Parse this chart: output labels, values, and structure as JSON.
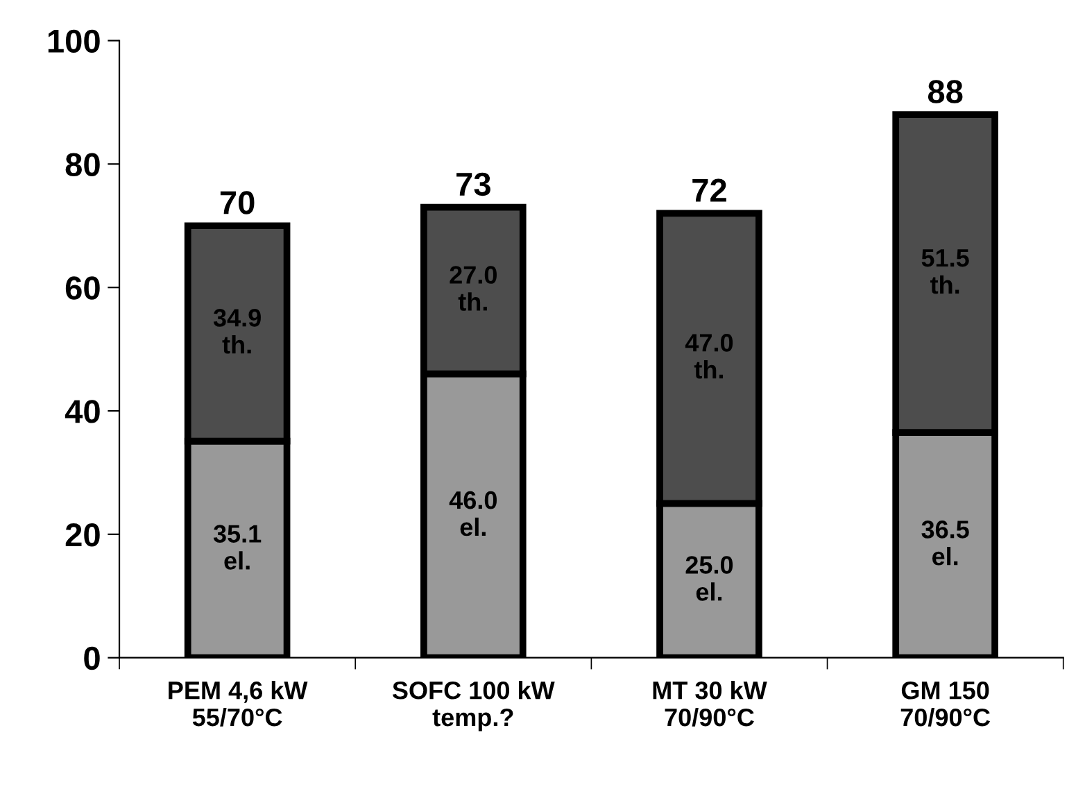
{
  "chart_data": {
    "type": "bar",
    "stacked": true,
    "categories": [
      "PEM 4,6 kW\n55/70°C",
      "SOFC 100 kW\ntemp.?",
      "MT 30 kW\n70/90°C",
      "GM 150\n70/90°C"
    ],
    "series": [
      {
        "color": "#999999",
        "values": [
          35.1,
          46.0,
          25.0,
          36.5
        ],
        "value_labels": [
          "35.1\nel.",
          "46.0\nel.",
          "25.0\nel.",
          "36.5\nel."
        ]
      },
      {
        "color": "#4d4d4d",
        "values": [
          34.9,
          27.0,
          47.0,
          51.5
        ],
        "value_labels": [
          "34.9\nth.",
          "27.0\nth.",
          "47.0\nth.",
          "51.5\nth."
        ]
      }
    ],
    "totals": [
      "70",
      "73",
      "72",
      "88"
    ],
    "ylim": [
      0,
      100
    ],
    "yticks": [
      0,
      20,
      40,
      60,
      80,
      100
    ],
    "grid": false,
    "legend": false
  }
}
